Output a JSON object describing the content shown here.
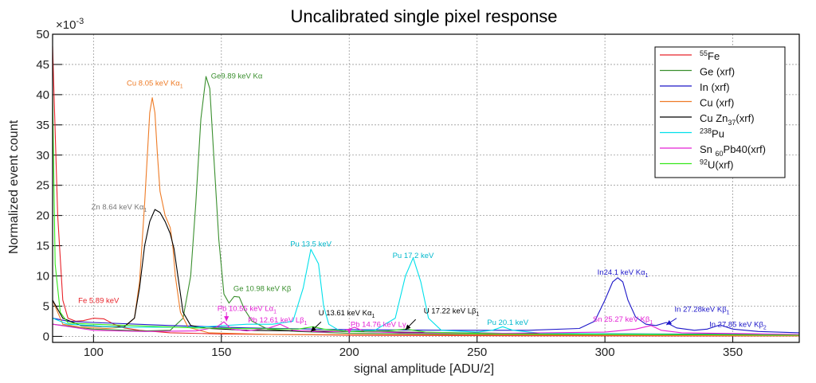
{
  "chart_data": {
    "type": "line",
    "title": "Uncalibrated single pixel response",
    "xlabel": "signal amplitude [ADU/2]",
    "ylabel": "Normalized event count",
    "y_multiplier": "×10",
    "y_multiplier_exp": "-3",
    "xlim": [
      84,
      376
    ],
    "ylim": [
      -1,
      50
    ],
    "x_ticks": [
      100,
      150,
      200,
      250,
      300,
      350
    ],
    "y_ticks": [
      0,
      5,
      10,
      15,
      20,
      25,
      30,
      35,
      40,
      45,
      50
    ],
    "grid": true,
    "legend_position": "top-right",
    "series": [
      {
        "name": "55Fe",
        "sup": "55",
        "base": "Fe",
        "sub": "",
        "after": "",
        "color": "#e8232a",
        "points": [
          [
            84,
            48
          ],
          [
            86,
            20
          ],
          [
            88,
            6
          ],
          [
            90,
            3
          ],
          [
            93,
            2.5
          ],
          [
            96,
            2.6
          ],
          [
            100,
            3
          ],
          [
            104,
            2.9
          ],
          [
            108,
            2
          ],
          [
            112,
            1.4
          ],
          [
            118,
            1
          ],
          [
            130,
            0.6
          ],
          [
            150,
            0.4
          ],
          [
            200,
            0.2
          ],
          [
            260,
            0.1
          ],
          [
            376,
            0.05
          ]
        ]
      },
      {
        "name": "Ge (xrf)",
        "sup": "",
        "base": "Ge (xrf)",
        "sub": "",
        "after": "",
        "color": "#3a8f2e",
        "points": [
          [
            84,
            2
          ],
          [
            100,
            1.2
          ],
          [
            120,
            0.9
          ],
          [
            130,
            1
          ],
          [
            135,
            3
          ],
          [
            138,
            10
          ],
          [
            140,
            22
          ],
          [
            142,
            36
          ],
          [
            144,
            43
          ],
          [
            145.5,
            41
          ],
          [
            147,
            30
          ],
          [
            149,
            16
          ],
          [
            151,
            7
          ],
          [
            153,
            5.5
          ],
          [
            155,
            6.6
          ],
          [
            157,
            6.5
          ],
          [
            159,
            4.5
          ],
          [
            162,
            2.5
          ],
          [
            168,
            1.2
          ],
          [
            180,
            0.8
          ],
          [
            200,
            0.5
          ],
          [
            260,
            0.3
          ],
          [
            376,
            0.2
          ]
        ]
      },
      {
        "name": "In (xrf)",
        "sup": "",
        "base": "In (xrf)",
        "sub": "",
        "after": "",
        "color": "#1c16c8",
        "points": [
          [
            84,
            3
          ],
          [
            90,
            2.5
          ],
          [
            100,
            2.3
          ],
          [
            130,
            1.8
          ],
          [
            160,
            1.4
          ],
          [
            200,
            1.1
          ],
          [
            240,
            1
          ],
          [
            270,
            1
          ],
          [
            290,
            1.3
          ],
          [
            296,
            2.5
          ],
          [
            300,
            6
          ],
          [
            303,
            9
          ],
          [
            305,
            9.7
          ],
          [
            307,
            9
          ],
          [
            309,
            6
          ],
          [
            312,
            3.2
          ],
          [
            316,
            2
          ],
          [
            320,
            1.8
          ],
          [
            324,
            2.3
          ],
          [
            328,
            1.4
          ],
          [
            335,
            1
          ],
          [
            340,
            1.2
          ],
          [
            345,
            1.9
          ],
          [
            350,
            1.2
          ],
          [
            360,
            0.8
          ],
          [
            376,
            0.6
          ]
        ]
      },
      {
        "name": "Cu (xrf)",
        "sup": "",
        "base": "Cu (xrf)",
        "sub": "",
        "after": "",
        "color": "#ee7b26",
        "points": [
          [
            84,
            6
          ],
          [
            88,
            2
          ],
          [
            95,
            1.5
          ],
          [
            105,
            1.3
          ],
          [
            112,
            1.5
          ],
          [
            116,
            3
          ],
          [
            118,
            9
          ],
          [
            120,
            22
          ],
          [
            122,
            37
          ],
          [
            123,
            39.5
          ],
          [
            124,
            37
          ],
          [
            125,
            30
          ],
          [
            126,
            24
          ],
          [
            128,
            20
          ],
          [
            130,
            18
          ],
          [
            131,
            15
          ],
          [
            132,
            10
          ],
          [
            134,
            4
          ],
          [
            137,
            1.5
          ],
          [
            145,
            0.6
          ],
          [
            170,
            0.3
          ],
          [
            376,
            0.1
          ]
        ]
      },
      {
        "name": "Cu Zn37(xrf)",
        "sup": "",
        "base": "Cu Zn",
        "sub": "37",
        "after": "(xrf)",
        "color": "#000000",
        "points": [
          [
            84,
            6
          ],
          [
            88,
            3
          ],
          [
            95,
            1.8
          ],
          [
            105,
            1.6
          ],
          [
            112,
            1.6
          ],
          [
            116,
            3
          ],
          [
            118,
            8
          ],
          [
            120,
            15
          ],
          [
            122,
            19
          ],
          [
            124,
            21
          ],
          [
            126,
            20.5
          ],
          [
            128,
            19
          ],
          [
            130,
            17
          ],
          [
            131.5,
            14.5
          ],
          [
            133,
            10
          ],
          [
            135,
            4
          ],
          [
            138,
            1.8
          ],
          [
            145,
            1.3
          ],
          [
            160,
            1
          ],
          [
            200,
            0.8
          ],
          [
            260,
            0.5
          ],
          [
            376,
            0.3
          ]
        ]
      },
      {
        "name": "238Pu",
        "sup": "238",
        "base": "Pu",
        "sub": "",
        "after": "",
        "color": "#00e0ea",
        "points": [
          [
            84,
            3
          ],
          [
            90,
            2
          ],
          [
            110,
            1.5
          ],
          [
            140,
            1.5
          ],
          [
            160,
            2
          ],
          [
            170,
            2
          ],
          [
            178,
            2.5
          ],
          [
            182,
            8
          ],
          [
            185,
            14.4
          ],
          [
            188,
            12
          ],
          [
            190,
            5
          ],
          [
            192,
            2
          ],
          [
            196,
            1
          ],
          [
            200,
            0.8
          ],
          [
            210,
            1
          ],
          [
            218,
            3
          ],
          [
            222,
            10
          ],
          [
            225,
            13
          ],
          [
            228,
            9
          ],
          [
            231,
            3
          ],
          [
            236,
            1
          ],
          [
            250,
            0.7
          ],
          [
            256,
            1
          ],
          [
            260,
            1.6
          ],
          [
            264,
            1
          ],
          [
            275,
            0.5
          ],
          [
            376,
            0.2
          ]
        ]
      },
      {
        "name": "Sn60Pb40(xrf)",
        "sup": "",
        "base": "Sn ",
        "sub": "60",
        "after": "Pb40(xrf)",
        "color": "#e421d5",
        "points": [
          [
            84,
            2
          ],
          [
            100,
            1
          ],
          [
            120,
            0.8
          ],
          [
            140,
            0.9
          ],
          [
            148,
            1.5
          ],
          [
            151,
            2.4
          ],
          [
            154,
            1.2
          ],
          [
            160,
            0.9
          ],
          [
            168,
            1.3
          ],
          [
            173,
            2
          ],
          [
            178,
            1
          ],
          [
            190,
            0.7
          ],
          [
            198,
            0.9
          ],
          [
            202,
            1.5
          ],
          [
            206,
            0.8
          ],
          [
            220,
            0.6
          ],
          [
            260,
            0.5
          ],
          [
            300,
            0.7
          ],
          [
            312,
            1.2
          ],
          [
            318,
            1.8
          ],
          [
            322,
            1
          ],
          [
            330,
            0.6
          ],
          [
            376,
            0.3
          ]
        ]
      },
      {
        "name": "92U(xrf)",
        "sup": "92",
        "base": "U(xrf)",
        "sub": "",
        "after": "",
        "color": "#35e81c",
        "points": [
          [
            84,
            40
          ],
          [
            85,
            12
          ],
          [
            87,
            4
          ],
          [
            90,
            2.2
          ],
          [
            100,
            2
          ],
          [
            140,
            1.4
          ],
          [
            180,
            1.2
          ],
          [
            186,
            1.6
          ],
          [
            190,
            1.2
          ],
          [
            200,
            0.8
          ],
          [
            215,
            0.9
          ],
          [
            222,
            1.2
          ],
          [
            230,
            0.7
          ],
          [
            260,
            0.4
          ],
          [
            376,
            0.2
          ]
        ]
      }
    ],
    "annotations": [
      {
        "text": "Fe 5.89 keV",
        "color": "#e8232a",
        "x": 102,
        "y": 5.5
      },
      {
        "text": "Cu 8.05 keV K",
        "greek": "α",
        "sub": "1",
        "color": "#ee7b26",
        "x": 124,
        "y": 41.5
      },
      {
        "text": "Ge9.89 keV K",
        "greek": "α",
        "sub": "",
        "color": "#3a8f2e",
        "x": 156,
        "y": 42.7
      },
      {
        "text": "Zn 8.64 keV K",
        "greek": "α",
        "sub": "1",
        "color": "#777777",
        "x": 110,
        "y": 21
      },
      {
        "text": "Ge 10.98 keV K",
        "greek": "β",
        "sub": "",
        "color": "#3a8f2e",
        "x": 166,
        "y": 7.5
      },
      {
        "text": "Pb 10.55 keV L",
        "greek": "α",
        "sub": "1",
        "color": "#e421d5",
        "x": 160,
        "y": 4.2
      },
      {
        "text": "Pb 12.61 keV L",
        "greek": "β",
        "sub": "1",
        "color": "#e421d5",
        "x": 172,
        "y": 2.3
      },
      {
        "text": "Pu 13.5 keV",
        "color": "#00b8cc",
        "x": 185,
        "y": 14.9
      },
      {
        "text": "U 13.61 keV K",
        "greek": "α",
        "sub": "1",
        "color": "#000000",
        "x": 199,
        "y": 3.5
      },
      {
        "text": "Pb 14.76 keV L",
        "greek": "γ",
        "sub": "1",
        "color": "#e421d5",
        "x": 212,
        "y": 1.6
      },
      {
        "text": "Pu 17.2 keV",
        "color": "#00b8cc",
        "x": 225,
        "y": 13
      },
      {
        "text": "U 17.22 keV L",
        "greek": "β",
        "sub": "1",
        "color": "#000000",
        "x": 240,
        "y": 3.8
      },
      {
        "text": "Pu 20.1 keV",
        "color": "#00b8cc",
        "x": 262,
        "y": 1.9
      },
      {
        "text": "In24.1 keV K",
        "greek": "α",
        "sub": "1",
        "color": "#1c16c8",
        "x": 307,
        "y": 10.2
      },
      {
        "text": "Sn 25.27 keV K",
        "greek": "β",
        "sub": "1",
        "color": "#e421d5",
        "x": 307,
        "y": 2.4
      },
      {
        "text": "In 27.28keV K",
        "greek": "β",
        "sub": "1",
        "color": "#1c16c8",
        "x": 338,
        "y": 4.1
      },
      {
        "text": "In 27.85 keV K",
        "greek": "β",
        "sub": "2",
        "color": "#1c16c8",
        "x": 352,
        "y": 1.6
      }
    ],
    "arrows": [
      {
        "color": "#e421d5",
        "from": [
          152,
          4.0
        ],
        "to": [
          152,
          2.5
        ]
      },
      {
        "color": "#000000",
        "from": [
          189,
          2.4
        ],
        "to": [
          185,
          0.8
        ]
      },
      {
        "color": "#e421d5",
        "from": [
          200,
          1.2
        ],
        "to": [
          200,
          0.4
        ]
      },
      {
        "color": "#000000",
        "from": [
          226,
          2.8
        ],
        "to": [
          222,
          1.1
        ]
      },
      {
        "color": "#1c16c8",
        "from": [
          328,
          3.0
        ],
        "to": [
          324,
          1.9
        ]
      }
    ]
  }
}
